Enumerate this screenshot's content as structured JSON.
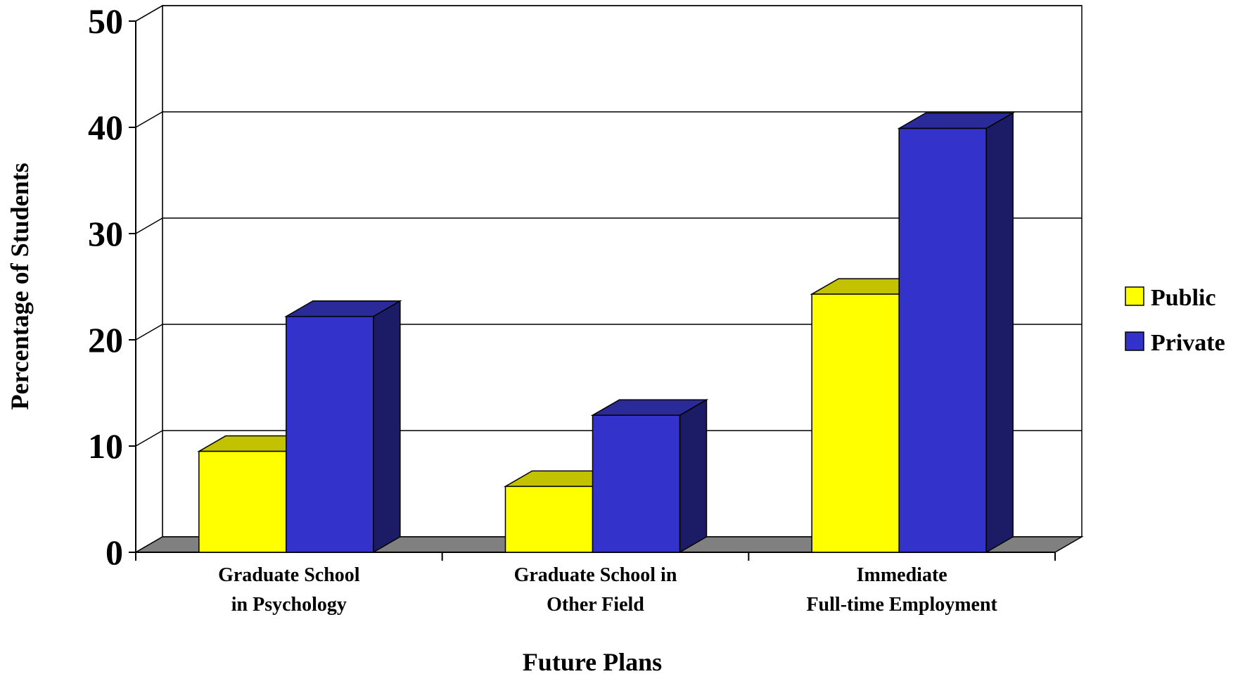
{
  "chart_data": {
    "type": "bar",
    "style": "3d-clustered",
    "title": "",
    "xlabel": "Future Plans",
    "ylabel": "Percentage of Students",
    "ylim": [
      0,
      50
    ],
    "yticks": [
      "0",
      "10",
      "20",
      "30",
      "40",
      "50"
    ],
    "grid": true,
    "legend_position": "right",
    "categories": [
      [
        "Graduate School",
        "in Psychology"
      ],
      [
        "Graduate School in",
        "Other Field"
      ],
      [
        "Immediate",
        "Full-time Employment"
      ]
    ],
    "series": [
      {
        "name": "Public",
        "values": [
          9.5,
          6.2,
          24.3
        ],
        "color": "#FFFF00",
        "top_color": "#C2C200",
        "side_color": "#999900"
      },
      {
        "name": "Private",
        "values": [
          22.2,
          12.9,
          39.9
        ],
        "color": "#3333CC",
        "top_color": "#2A2A99",
        "side_color": "#1C1C66"
      }
    ],
    "floor_color": "#808080"
  }
}
